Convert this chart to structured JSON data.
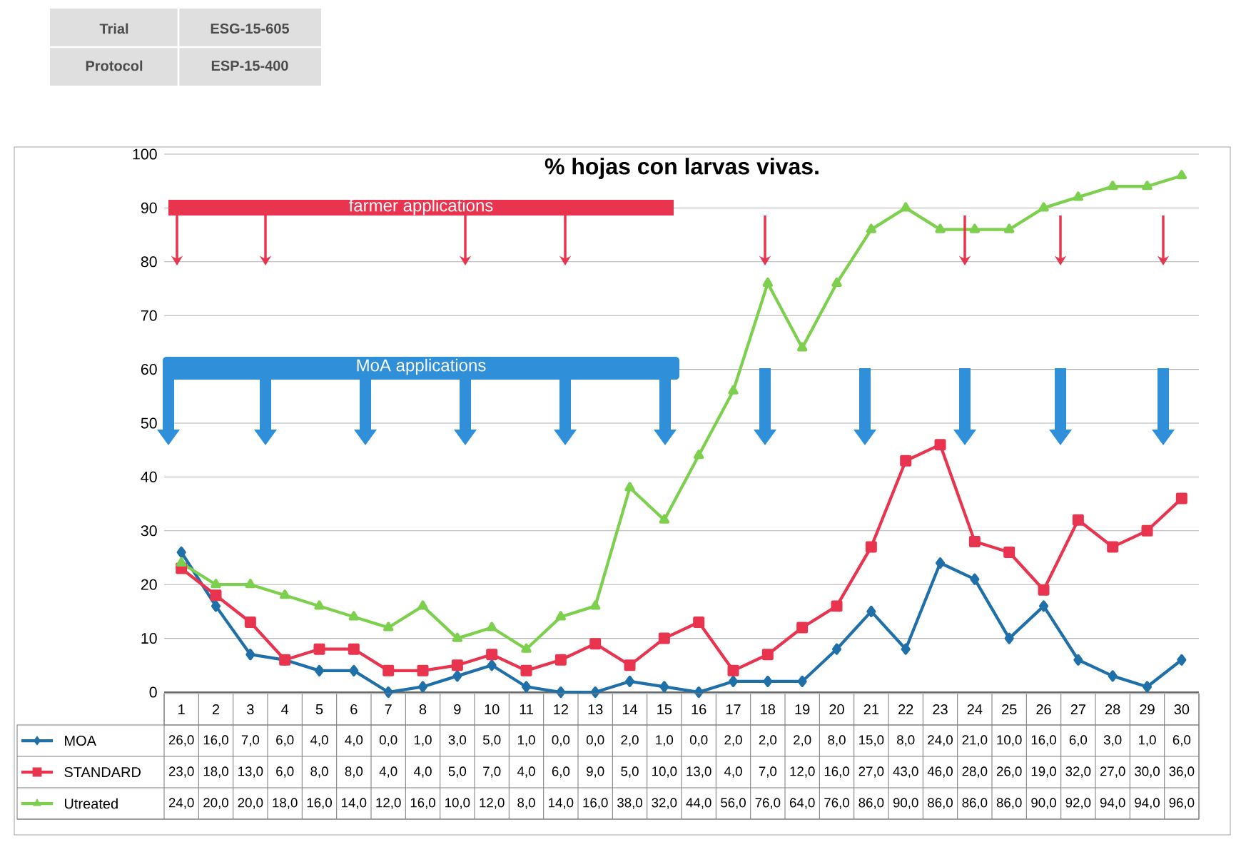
{
  "chart_data": {
    "type": "line",
    "title": "% hojas con larvas vivas.",
    "categories": [
      "1",
      "2",
      "3",
      "4",
      "5",
      "6",
      "7",
      "8",
      "9",
      "10",
      "11",
      "12",
      "13",
      "14",
      "15",
      "16",
      "17",
      "18",
      "19",
      "20",
      "21",
      "22",
      "23",
      "24",
      "25",
      "26",
      "27",
      "28",
      "29",
      "30"
    ],
    "series": [
      {
        "name": "MOA",
        "color": "#1f6fa8",
        "marker": "diamond",
        "values": [
          26,
          16,
          7,
          6,
          4,
          4,
          0,
          1,
          3,
          5,
          1,
          0,
          0,
          2,
          1,
          0,
          2,
          2,
          2,
          8,
          15,
          8,
          24,
          21,
          10,
          16,
          6,
          3,
          1,
          6
        ],
        "value_labels": [
          "26,0",
          "16,0",
          "7,0",
          "6,0",
          "4,0",
          "4,0",
          "0,0",
          "1,0",
          "3,0",
          "5,0",
          "1,0",
          "0,0",
          "0,0",
          "2,0",
          "1,0",
          "0,0",
          "2,0",
          "2,0",
          "2,0",
          "8,0",
          "15,0",
          "8,0",
          "24,0",
          "21,0",
          "10,0",
          "16,0",
          "6,0",
          "3,0",
          "1,0",
          "6,0"
        ]
      },
      {
        "name": "STANDARD",
        "color": "#e8344e",
        "marker": "square",
        "values": [
          23,
          18,
          13,
          6,
          8,
          8,
          4,
          4,
          5,
          7,
          4,
          6,
          9,
          5,
          10,
          13,
          4,
          7,
          12,
          16,
          27,
          43,
          46,
          28,
          26,
          19,
          32,
          27,
          30,
          36
        ],
        "value_labels": [
          "23,0",
          "18,0",
          "13,0",
          "6,0",
          "8,0",
          "8,0",
          "4,0",
          "4,0",
          "5,0",
          "7,0",
          "4,0",
          "6,0",
          "9,0",
          "5,0",
          "10,0",
          "13,0",
          "4,0",
          "7,0",
          "12,0",
          "16,0",
          "27,0",
          "43,0",
          "46,0",
          "28,0",
          "26,0",
          "19,0",
          "32,0",
          "27,0",
          "30,0",
          "36,0"
        ]
      },
      {
        "name": "Utreated",
        "color": "#7dcf4e",
        "marker": "triangle",
        "values": [
          24,
          20,
          20,
          18,
          16,
          14,
          12,
          16,
          10,
          12,
          8,
          14,
          16,
          38,
          32,
          44,
          56,
          76,
          64,
          76,
          86,
          90,
          86,
          86,
          86,
          90,
          92,
          94,
          94,
          96
        ],
        "value_labels": [
          "24,0",
          "20,0",
          "20,0",
          "18,0",
          "16,0",
          "14,0",
          "12,0",
          "16,0",
          "10,0",
          "12,0",
          "8,0",
          "14,0",
          "16,0",
          "38,0",
          "32,0",
          "44,0",
          "56,0",
          "76,0",
          "64,0",
          "76,0",
          "86,0",
          "90,0",
          "86,0",
          "86,0",
          "86,0",
          "90,0",
          "92,0",
          "94,0",
          "94,0",
          "96,0"
        ]
      }
    ],
    "ylim": [
      0,
      100
    ],
    "yticks": [
      0,
      10,
      20,
      30,
      40,
      50,
      60,
      70,
      80,
      90,
      100
    ],
    "grid": "y",
    "legend": "bottom",
    "annotations": [
      "Trial",
      "ESG-15-605",
      "Protocol",
      "ESP-15-400",
      "farmer applications",
      "MoA applications"
    ]
  }
}
